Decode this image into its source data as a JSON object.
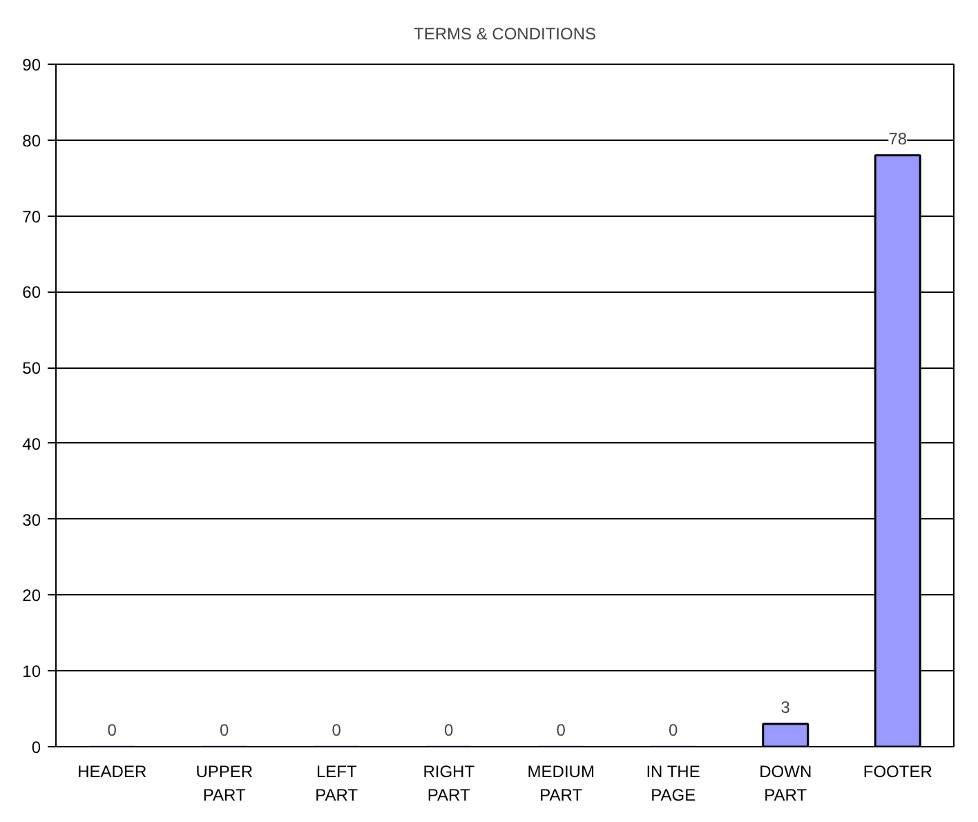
{
  "chart_data": {
    "type": "bar",
    "title": "TERMS & CONDITIONS",
    "categories": [
      "HEADER",
      "UPPER PART",
      "LEFT PART",
      "RIGHT PART",
      "MEDIUM PART",
      "IN THE PAGE",
      "DOWN PART",
      "FOOTER"
    ],
    "values": [
      0,
      0,
      0,
      0,
      0,
      0,
      3,
      78
    ],
    "color": "#9999ff",
    "ylim": [
      0,
      90
    ],
    "yticks": [
      0,
      10,
      20,
      30,
      40,
      50,
      60,
      70,
      80,
      90
    ],
    "grid": "y",
    "data_labels": true
  }
}
